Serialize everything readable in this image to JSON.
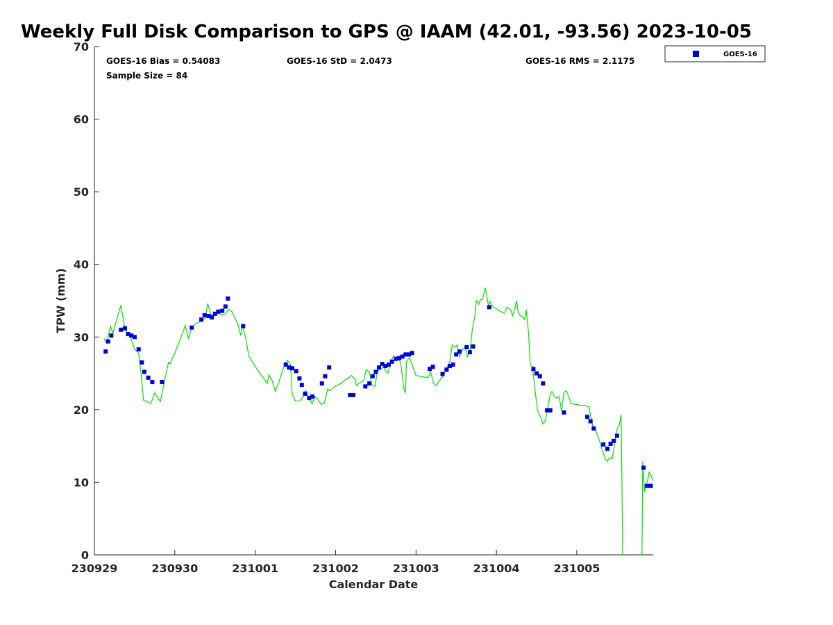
{
  "chart_data": {
    "type": "scatter",
    "title": "Weekly Full Disk Comparison to GPS @ IAAM (42.01, -93.56) 2023-10-05",
    "xlabel": "Calendar Date",
    "ylabel": "TPW (mm)",
    "xlim": [
      0,
      6.95
    ],
    "ylim": [
      0,
      70
    ],
    "x_ticks": [
      {
        "value": 0,
        "label": "230929"
      },
      {
        "value": 1,
        "label": "230930"
      },
      {
        "value": 2,
        "label": "231001"
      },
      {
        "value": 3,
        "label": "231002"
      },
      {
        "value": 4,
        "label": "231003"
      },
      {
        "value": 5,
        "label": "231004"
      },
      {
        "value": 6,
        "label": "231005"
      }
    ],
    "y_ticks": [
      0,
      10,
      20,
      30,
      40,
      50,
      60,
      70
    ],
    "x_unit_note": "x values are in days since 230929 00:00",
    "stats": {
      "bias": "GOES-16 Bias = 0.54083",
      "std": "GOES-16 StD = 2.0473",
      "rms": "GOES-16 RMS = 2.1175",
      "sample": "Sample Size = 84"
    },
    "legend": {
      "position": "top-right-outside",
      "entries": [
        "GOES-16"
      ]
    },
    "series": [
      {
        "name": "GOES-16",
        "color": "#0000e0",
        "marker": "square",
        "points": [
          [
            0.14,
            28.0
          ],
          [
            0.17,
            29.4
          ],
          [
            0.21,
            30.2
          ],
          [
            0.33,
            31.0
          ],
          [
            0.38,
            31.2
          ],
          [
            0.42,
            30.4
          ],
          [
            0.46,
            30.2
          ],
          [
            0.5,
            30.0
          ],
          [
            0.55,
            28.3
          ],
          [
            0.59,
            26.5
          ],
          [
            0.62,
            25.2
          ],
          [
            0.67,
            24.4
          ],
          [
            0.72,
            23.8
          ],
          [
            0.84,
            23.8
          ],
          [
            1.21,
            31.3
          ],
          [
            1.33,
            32.4
          ],
          [
            1.37,
            33.0
          ],
          [
            1.42,
            32.9
          ],
          [
            1.46,
            32.7
          ],
          [
            1.5,
            33.2
          ],
          [
            1.54,
            33.5
          ],
          [
            1.59,
            33.6
          ],
          [
            1.63,
            34.2
          ],
          [
            1.66,
            35.3
          ],
          [
            1.85,
            31.5
          ],
          [
            2.38,
            26.2
          ],
          [
            2.42,
            25.8
          ],
          [
            2.46,
            25.7
          ],
          [
            2.51,
            25.3
          ],
          [
            2.55,
            24.3
          ],
          [
            2.58,
            23.4
          ],
          [
            2.62,
            22.2
          ],
          [
            2.67,
            21.6
          ],
          [
            2.71,
            21.8
          ],
          [
            2.83,
            23.6
          ],
          [
            2.87,
            24.6
          ],
          [
            2.92,
            25.8
          ],
          [
            3.18,
            22.0
          ],
          [
            3.22,
            22.0
          ],
          [
            3.37,
            23.2
          ],
          [
            3.42,
            23.6
          ],
          [
            3.46,
            24.6
          ],
          [
            3.5,
            25.2
          ],
          [
            3.54,
            25.8
          ],
          [
            3.58,
            26.3
          ],
          [
            3.62,
            26.0
          ],
          [
            3.66,
            26.2
          ],
          [
            3.7,
            26.6
          ],
          [
            3.75,
            27.0
          ],
          [
            3.79,
            27.1
          ],
          [
            3.83,
            27.3
          ],
          [
            3.87,
            27.6
          ],
          [
            3.91,
            27.6
          ],
          [
            3.95,
            27.8
          ],
          [
            4.17,
            25.6
          ],
          [
            4.21,
            25.9
          ],
          [
            4.33,
            24.9
          ],
          [
            4.38,
            25.5
          ],
          [
            4.42,
            26.0
          ],
          [
            4.46,
            26.2
          ],
          [
            4.5,
            27.6
          ],
          [
            4.54,
            28.0
          ],
          [
            4.63,
            28.6
          ],
          [
            4.67,
            27.9
          ],
          [
            4.71,
            28.7
          ],
          [
            4.91,
            34.1
          ],
          [
            5.46,
            25.6
          ],
          [
            5.5,
            25.0
          ],
          [
            5.54,
            24.6
          ],
          [
            5.58,
            23.6
          ],
          [
            5.63,
            19.9
          ],
          [
            5.67,
            19.9
          ],
          [
            5.84,
            19.6
          ],
          [
            6.13,
            19.0
          ],
          [
            6.17,
            18.4
          ],
          [
            6.21,
            17.4
          ],
          [
            6.33,
            15.2
          ],
          [
            6.38,
            14.6
          ],
          [
            6.42,
            15.3
          ],
          [
            6.46,
            15.7
          ],
          [
            6.5,
            16.4
          ],
          [
            6.83,
            12.0
          ],
          [
            6.87,
            9.5
          ],
          [
            6.92,
            9.5
          ]
        ]
      },
      {
        "name": "",
        "color": "#00e000",
        "style": "line",
        "segments": [
          [
            [
              0.12,
              29.8
            ],
            [
              0.15,
              29.2
            ],
            [
              0.2,
              31.5
            ],
            [
              0.23,
              30.5
            ],
            [
              0.28,
              32.5
            ],
            [
              0.33,
              34.4
            ],
            [
              0.38,
              31.0
            ],
            [
              0.42,
              30.5
            ],
            [
              0.46,
              29.6
            ],
            [
              0.5,
              28.3
            ],
            [
              0.55,
              27.8
            ],
            [
              0.58,
              25.0
            ],
            [
              0.61,
              21.3
            ],
            [
              0.66,
              21.1
            ],
            [
              0.7,
              20.8
            ],
            [
              0.75,
              22.3
            ],
            [
              0.79,
              21.6
            ],
            [
              0.82,
              21.1
            ],
            [
              0.87,
              23.8
            ],
            [
              0.92,
              26.5
            ],
            [
              0.94,
              26.3
            ],
            [
              1.0,
              27.8
            ],
            [
              1.05,
              29.2
            ],
            [
              1.1,
              30.6
            ],
            [
              1.13,
              31.6
            ],
            [
              1.17,
              29.8
            ],
            [
              1.21,
              31.3
            ],
            [
              1.25,
              31.8
            ],
            [
              1.33,
              32.2
            ],
            [
              1.38,
              32.6
            ],
            [
              1.41,
              34.6
            ],
            [
              1.45,
              33.1
            ],
            [
              1.5,
              32.9
            ],
            [
              1.55,
              33.3
            ],
            [
              1.59,
              33.0
            ],
            [
              1.63,
              33.2
            ],
            [
              1.67,
              33.8
            ],
            [
              1.71,
              33.5
            ],
            [
              1.75,
              32.6
            ],
            [
              1.79,
              31.6
            ],
            [
              1.82,
              30.2
            ],
            [
              1.84,
              31.6
            ],
            [
              1.88,
              30.0
            ],
            [
              1.92,
              27.4
            ],
            [
              1.98,
              26.3
            ],
            [
              2.04,
              25.3
            ],
            [
              2.1,
              24.4
            ],
            [
              2.15,
              23.6
            ],
            [
              2.17,
              24.8
            ],
            [
              2.21,
              24.0
            ],
            [
              2.25,
              22.5
            ],
            [
              2.3,
              24.0
            ],
            [
              2.36,
              26.0
            ],
            [
              2.4,
              26.8
            ],
            [
              2.44,
              26.2
            ],
            [
              2.46,
              22.2
            ],
            [
              2.5,
              21.2
            ],
            [
              2.55,
              21.2
            ],
            [
              2.6,
              21.8
            ],
            [
              2.63,
              22.6
            ],
            [
              2.67,
              21.5
            ],
            [
              2.71,
              20.8
            ],
            [
              2.74,
              21.8
            ],
            [
              2.78,
              21.4
            ],
            [
              2.82,
              20.7
            ],
            [
              2.86,
              20.9
            ],
            [
              2.9,
              22.8
            ],
            [
              2.93,
              22.6
            ],
            [
              2.98,
              23.1
            ],
            [
              3.05,
              23.5
            ],
            [
              3.1,
              23.9
            ],
            [
              3.15,
              24.3
            ],
            [
              3.2,
              24.7
            ],
            [
              3.24,
              24.2
            ],
            [
              3.26,
              23.3
            ],
            [
              3.3,
              23.7
            ],
            [
              3.35,
              24.0
            ],
            [
              3.38,
              25.5
            ],
            [
              3.42,
              25.2
            ],
            [
              3.45,
              23.4
            ],
            [
              3.49,
              23.2
            ],
            [
              3.52,
              25.3
            ],
            [
              3.56,
              25.6
            ],
            [
              3.6,
              25.9
            ],
            [
              3.62,
              25.3
            ],
            [
              3.65,
              25.0
            ],
            [
              3.68,
              26.4
            ],
            [
              3.72,
              27.4
            ],
            [
              3.75,
              26.8
            ],
            [
              3.78,
              27.2
            ],
            [
              3.81,
              26.4
            ],
            [
              3.85,
              22.8
            ],
            [
              3.87,
              22.4
            ],
            [
              3.88,
              26.6
            ],
            [
              3.92,
              27.2
            ],
            [
              3.95,
              26.2
            ],
            [
              4.0,
              24.7
            ],
            [
              4.05,
              24.6
            ],
            [
              4.1,
              24.5
            ],
            [
              4.15,
              24.4
            ],
            [
              4.18,
              25.2
            ],
            [
              4.22,
              23.6
            ],
            [
              4.25,
              23.3
            ],
            [
              4.29,
              24.0
            ],
            [
              4.33,
              24.5
            ],
            [
              4.38,
              25.7
            ],
            [
              4.42,
              26.6
            ],
            [
              4.45,
              28.9
            ],
            [
              4.48,
              28.6
            ],
            [
              4.51,
              28.9
            ],
            [
              4.54,
              27.3
            ],
            [
              4.58,
              28.3
            ],
            [
              4.61,
              28.6
            ],
            [
              4.64,
              27.3
            ],
            [
              4.67,
              28.0
            ],
            [
              4.7,
              31.0
            ],
            [
              4.73,
              32.8
            ],
            [
              4.75,
              35.0
            ],
            [
              4.78,
              34.5
            ],
            [
              4.8,
              35.1
            ],
            [
              4.83,
              35.2
            ],
            [
              4.86,
              36.8
            ],
            [
              4.88,
              35.7
            ],
            [
              4.9,
              34.3
            ],
            [
              4.92,
              34.9
            ],
            [
              4.95,
              34.2
            ],
            [
              5.0,
              33.9
            ],
            [
              5.05,
              33.5
            ],
            [
              5.1,
              33.3
            ],
            [
              5.13,
              34.1
            ],
            [
              5.16,
              33.9
            ],
            [
              5.18,
              33.7
            ],
            [
              5.2,
              32.9
            ],
            [
              5.23,
              33.9
            ],
            [
              5.25,
              35.0
            ],
            [
              5.27,
              33.5
            ],
            [
              5.29,
              33.0
            ],
            [
              5.32,
              32.8
            ],
            [
              5.35,
              32.4
            ],
            [
              5.37,
              33.8
            ],
            [
              5.4,
              30.5
            ],
            [
              5.42,
              26.3
            ],
            [
              5.45,
              25.8
            ],
            [
              5.48,
              22.8
            ],
            [
              5.51,
              19.9
            ],
            [
              5.55,
              19.0
            ],
            [
              5.58,
              18.0
            ],
            [
              5.61,
              18.5
            ],
            [
              5.64,
              20.4
            ],
            [
              5.67,
              22.1
            ],
            [
              5.69,
              22.5
            ],
            [
              5.72,
              21.8
            ],
            [
              5.75,
              21.6
            ],
            [
              5.78,
              21.8
            ],
            [
              5.81,
              19.8
            ],
            [
              5.84,
              22.4
            ],
            [
              5.87,
              22.6
            ],
            [
              5.9,
              21.8
            ],
            [
              5.93,
              20.8
            ],
            [
              6.0,
              20.7
            ],
            [
              6.05,
              20.6
            ],
            [
              6.1,
              20.6
            ],
            [
              6.15,
              20.4
            ],
            [
              6.2,
              17.6
            ],
            [
              6.24,
              17.0
            ],
            [
              6.28,
              15.8
            ],
            [
              6.32,
              14.3
            ],
            [
              6.36,
              13.1
            ],
            [
              6.38,
              12.9
            ],
            [
              6.41,
              13.4
            ],
            [
              6.44,
              13.2
            ],
            [
              6.47,
              15.3
            ],
            [
              6.5,
              17.3
            ],
            [
              6.53,
              18.0
            ],
            [
              6.55,
              19.3
            ],
            [
              6.56,
              11.2
            ],
            [
              6.57,
              0
            ]
          ],
          [
            [
              6.81,
              0
            ],
            [
              6.82,
              12.9
            ],
            [
              6.84,
              8.7
            ],
            [
              6.86,
              9.5
            ],
            [
              6.88,
              10.2
            ],
            [
              6.9,
              11.4
            ],
            [
              6.92,
              11.0
            ],
            [
              6.95,
              10.2
            ]
          ]
        ]
      }
    ]
  }
}
